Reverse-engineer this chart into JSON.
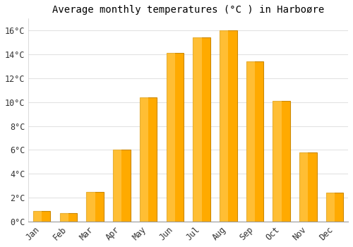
{
  "title": "Average monthly temperatures (°C ) in Harboøre",
  "months": [
    "Jan",
    "Feb",
    "Mar",
    "Apr",
    "May",
    "Jun",
    "Jul",
    "Aug",
    "Sep",
    "Oct",
    "Nov",
    "Dec"
  ],
  "values": [
    0.9,
    0.7,
    2.5,
    6.0,
    10.4,
    14.1,
    15.4,
    16.0,
    13.4,
    10.1,
    5.8,
    2.4
  ],
  "bar_color": "#FFAA00",
  "bar_edge_color": "#CC8800",
  "ylim": [
    0,
    17
  ],
  "ytick_values": [
    0,
    2,
    4,
    6,
    8,
    10,
    12,
    14,
    16
  ],
  "background_color": "#FFFFFF",
  "plot_bg_color": "#FFFFFF",
  "grid_color": "#E0E0E0",
  "font_family": "monospace",
  "title_fontsize": 10,
  "tick_fontsize": 8.5
}
